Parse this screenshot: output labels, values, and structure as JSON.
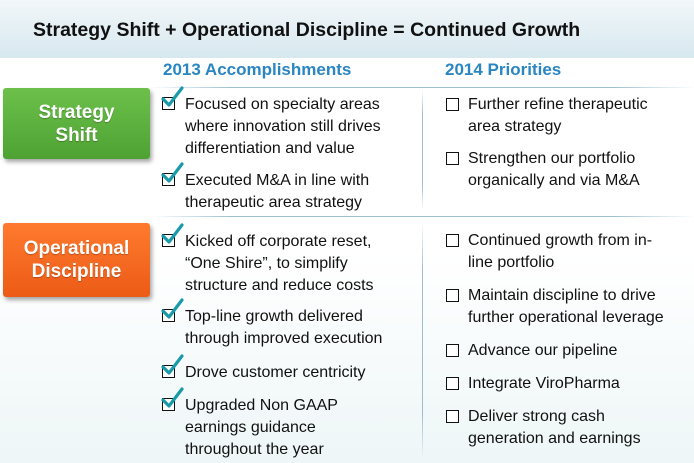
{
  "title": "Strategy Shift + Operational Discipline = Continued Growth",
  "columns": {
    "accomplishments_header": "2013 Accomplishments",
    "priorities_header": "2014 Priorities"
  },
  "rows": {
    "strategy": {
      "tag_line1": "Strategy",
      "tag_line2": "Shift",
      "tag_color": "#5ab23c",
      "accomplishments": [
        "Focused on specialty areas\nwhere innovation still drives\ndifferentiation and value",
        "Executed M&A in line with\ntherapeutic area strategy"
      ],
      "priorities": [
        "Further refine therapeutic\narea strategy",
        "Strengthen our portfolio\norganically and via M&A"
      ]
    },
    "operational": {
      "tag_line1": "Operational",
      "tag_line2": "Discipline",
      "tag_color": "#f36a21",
      "accomplishments": [
        "Kicked off corporate reset,\n“One Shire”, to simplify\nstructure and reduce costs",
        "Top-line growth delivered\nthrough improved execution",
        "Drove customer centricity",
        "Upgraded Non GAAP\nearnings guidance\nthroughout the year"
      ],
      "priorities": [
        "Continued growth from in-\nline portfolio",
        "Maintain discipline to drive\nfurther operational leverage",
        "Advance our pipeline",
        "Integrate ViroPharma",
        "Deliver strong cash\ngeneration and earnings"
      ]
    }
  },
  "colors": {
    "header_blue": "#2a86c2",
    "check_teal": "#1a9aa8"
  },
  "icons": {
    "accomplishment_marker": "checked-box-icon",
    "priority_marker": "empty-checkbox-icon"
  }
}
